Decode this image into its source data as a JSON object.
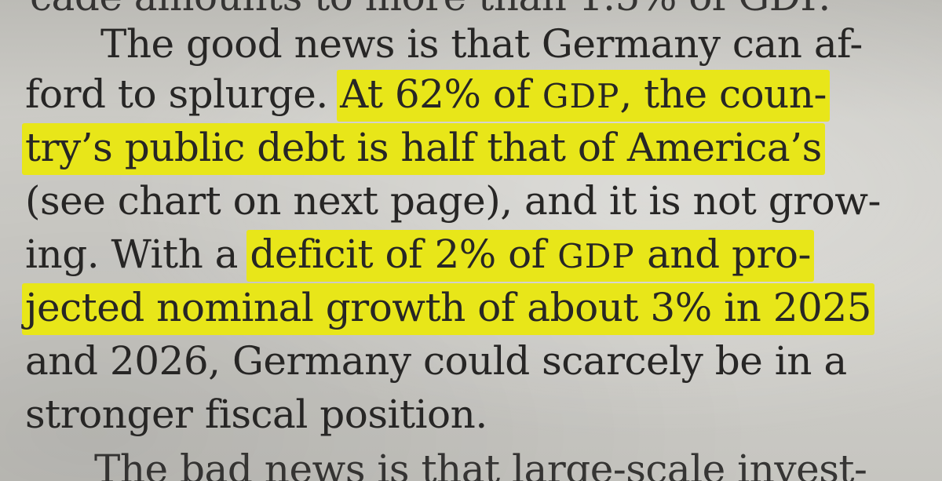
{
  "article": {
    "line_0": "cade amounts to more than 1.5% of GDP.",
    "line_1": "The good news is that Germany can af-",
    "line_2_plain": "ford to splurge. ",
    "line_2_hl_a": "At 62% of ",
    "line_2_hl_sc": "GDP",
    "line_2_hl_b": ", the coun-",
    "line_3_hl": "try’s public debt is half that of America’s",
    "line_4": "(see chart on next page), and it is not grow-",
    "line_5_plain": "ing. With a ",
    "line_5_hl_a": "deficit of 2% of ",
    "line_5_hl_sc": "GDP",
    "line_5_hl_b": " and pro-",
    "line_6_hl": "jected nominal growth of about 3% in 2025",
    "line_7": "and 2026, Germany could scarcely be in a",
    "line_8": "stronger fiscal position.",
    "line_9": "The bad news is that large-scale invest-"
  },
  "colors": {
    "highlight": "#e8e619",
    "ink": "#272625",
    "paper": "#cdccc7"
  }
}
